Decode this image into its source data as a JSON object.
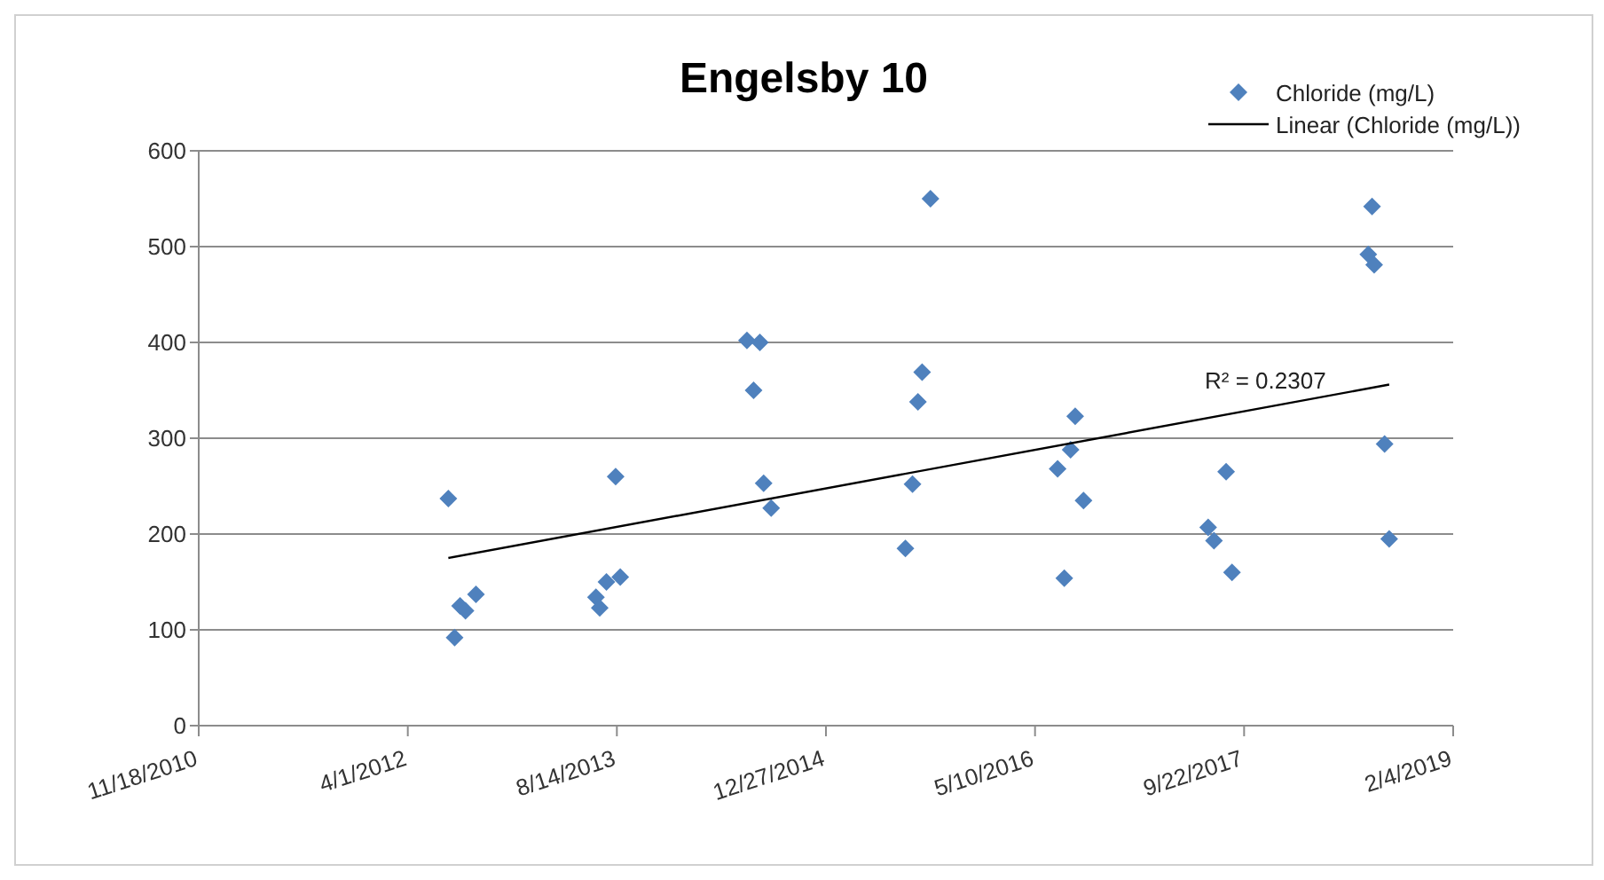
{
  "chart_data": {
    "type": "scatter",
    "title": "Engelsby 10",
    "xlim": [
      "2010-11-18",
      "2019-02-04"
    ],
    "xticks": [
      {
        "value": "2010-11-18",
        "label": "11/18/2010"
      },
      {
        "value": "2012-04-01",
        "label": "4/1/2012"
      },
      {
        "value": "2013-08-14",
        "label": "8/14/2013"
      },
      {
        "value": "2014-12-27",
        "label": "12/27/2014"
      },
      {
        "value": "2016-05-10",
        "label": "5/10/2016"
      },
      {
        "value": "2017-09-22",
        "label": "9/22/2017"
      },
      {
        "value": "2019-02-04",
        "label": "2/4/2019"
      }
    ],
    "ylim": [
      0,
      600
    ],
    "yticks": [
      0,
      100,
      200,
      300,
      400,
      500,
      600
    ],
    "grid": "y",
    "legend": "top right",
    "series": [
      {
        "name": "Chloride (mg/L)",
        "marker": "diamond",
        "color": "#4f81bd",
        "x": [
          "2012-07-07",
          "2012-07-22",
          "2012-08-04",
          "2012-08-17",
          "2012-09-11",
          "2013-06-25",
          "2013-07-04",
          "2013-07-20",
          "2013-08-11",
          "2013-08-22",
          "2014-06-21",
          "2014-07-07",
          "2014-07-22",
          "2014-07-31",
          "2014-08-18",
          "2015-07-05",
          "2015-07-22",
          "2015-08-04",
          "2015-08-14",
          "2015-09-03",
          "2016-07-03",
          "2016-07-19",
          "2016-08-03",
          "2016-08-14",
          "2016-09-03",
          "2017-06-28",
          "2017-07-12",
          "2017-08-10",
          "2017-08-24",
          "2018-07-16",
          "2018-07-25",
          "2018-07-30",
          "2018-08-24",
          "2018-09-04"
        ],
        "values": [
          237,
          92,
          125,
          120,
          137,
          134,
          123,
          150,
          260,
          155,
          402,
          350,
          400,
          253,
          227,
          185,
          252,
          338,
          369,
          550,
          268,
          154,
          288,
          323,
          235,
          207,
          193,
          265,
          160,
          492,
          542,
          481,
          294,
          195
        ]
      },
      {
        "name": "Linear (Chloride (mg/L))",
        "type": "line",
        "marker": "none",
        "line_style": "solid",
        "color": "#000000",
        "x": [
          "2012-07-07",
          "2018-09-04"
        ],
        "values": [
          175,
          356
        ]
      }
    ],
    "annotations": [
      "R² = 0.2307"
    ]
  }
}
